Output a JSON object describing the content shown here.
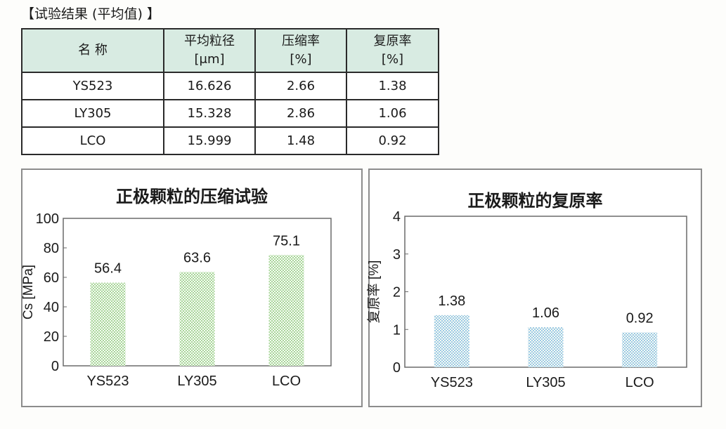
{
  "section_title": "【试验结果 (平均值) 】",
  "table": {
    "headers": [
      {
        "line1": "名 称",
        "line2": ""
      },
      {
        "line1": "平均粒径",
        "line2": "[μm]"
      },
      {
        "line1": "压缩率",
        "line2": "[%]"
      },
      {
        "line1": "复原率",
        "line2": "[%]"
      }
    ],
    "rows": [
      [
        "YS523",
        "16.626",
        "2.66",
        "1.38"
      ],
      [
        "LY305",
        "15.328",
        "2.86",
        "1.06"
      ],
      [
        "LCO",
        "15.999",
        "1.48",
        "0.92"
      ]
    ]
  },
  "colors": {
    "header_bg": "#d8ebe2",
    "compression_bar": "#a9d69a",
    "recovery_bar": "#9cc9e6"
  },
  "chart_data": [
    {
      "type": "bar",
      "title": "正极颗粒的压缩试验",
      "ylabel": "Cs [MPa]",
      "xlabel": "",
      "categories": [
        "YS523",
        "LY305",
        "LCO"
      ],
      "values": [
        56.4,
        63.6,
        75.1
      ],
      "data_labels": [
        "56.4",
        "63.6",
        "75.1"
      ],
      "ylim": [
        0,
        100
      ],
      "yticks": [
        "0",
        "20",
        "40",
        "60",
        "80",
        "100"
      ],
      "grid": false
    },
    {
      "type": "bar",
      "title": "正极颗粒的复原率",
      "ylabel": "复原率 [%]",
      "xlabel": "",
      "categories": [
        "YS523",
        "LY305",
        "LCO"
      ],
      "values": [
        1.38,
        1.06,
        0.92
      ],
      "data_labels": [
        "1.38",
        "1.06",
        "0.92"
      ],
      "ylim": [
        0,
        4
      ],
      "yticks": [
        "0",
        "1",
        "2",
        "3",
        "4"
      ],
      "grid": false
    }
  ]
}
